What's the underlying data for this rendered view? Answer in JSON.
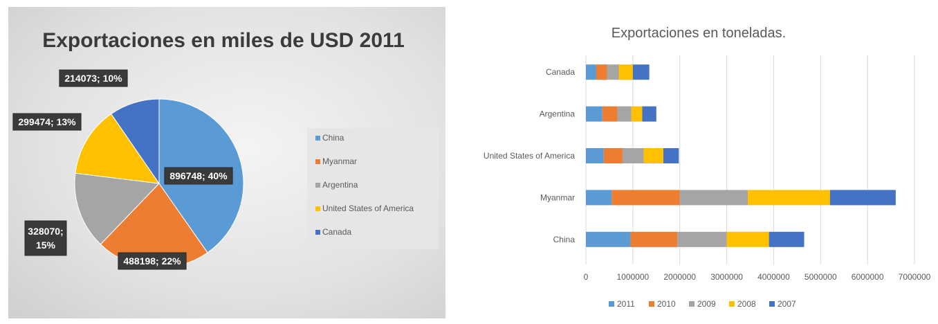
{
  "chart_data": [
    {
      "type": "pie",
      "title": "Exportaciones en miles de USD 2011",
      "categories": [
        "China",
        "Myanmar",
        "Argentina",
        "United States of America",
        "Canada"
      ],
      "values": [
        896748,
        488198,
        328070,
        299474,
        214073
      ],
      "percent_labels": [
        "896748; 40%",
        "488198; 22%",
        "328070; 15%",
        "299474; 13%",
        "214073; 10%"
      ],
      "colors": [
        "#5b9bd5",
        "#ed7d31",
        "#a5a5a5",
        "#ffc000",
        "#4472c4"
      ],
      "legend": "right"
    },
    {
      "type": "bar",
      "orientation": "horizontal",
      "stacked": true,
      "title": "Exportaciones en toneladas.",
      "categories": [
        "Canada",
        "Argentina",
        "United States of America",
        "Myanmar",
        "China"
      ],
      "series": [
        {
          "name": "2011",
          "color": "#5b9bd5",
          "values": [
            220000,
            350000,
            380000,
            550000,
            950000
          ]
        },
        {
          "name": "2010",
          "color": "#ed7d31",
          "values": [
            230000,
            320000,
            400000,
            1450000,
            1000000
          ]
        },
        {
          "name": "2009",
          "color": "#a5a5a5",
          "values": [
            250000,
            300000,
            450000,
            1450000,
            1050000
          ]
        },
        {
          "name": "2008",
          "color": "#ffc000",
          "values": [
            300000,
            230000,
            420000,
            1750000,
            900000
          ]
        },
        {
          "name": "2007",
          "color": "#4472c4",
          "values": [
            350000,
            300000,
            330000,
            1400000,
            750000
          ]
        }
      ],
      "xlim": [
        0,
        7000000
      ],
      "xticks": [
        "0",
        "1000000",
        "2000000",
        "3000000",
        "4000000",
        "5000000",
        "6000000",
        "7000000"
      ],
      "grid": "vertical",
      "legend": "bottom"
    }
  ]
}
